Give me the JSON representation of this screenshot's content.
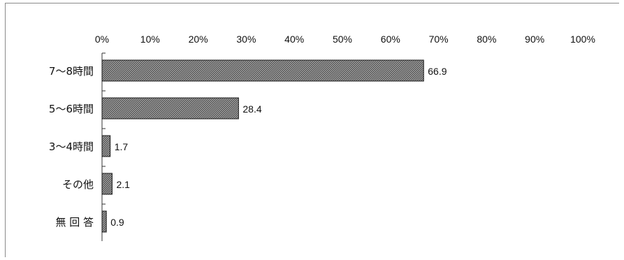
{
  "chart_data": {
    "type": "bar",
    "orientation": "horizontal",
    "categories": [
      "7～8時間",
      "5～6時間",
      "3～4時間",
      "その他",
      "無 回 答"
    ],
    "values": [
      66.9,
      28.4,
      1.7,
      2.1,
      0.9
    ],
    "data_labels": [
      "66.9",
      "28.4",
      "1.7",
      "2.1",
      "0.9"
    ],
    "xlim": [
      0,
      100
    ],
    "x_ticks": [
      0,
      10,
      20,
      30,
      40,
      50,
      60,
      70,
      80,
      90,
      100
    ],
    "x_tick_labels": [
      "0%",
      "10%",
      "20%",
      "30%",
      "40%",
      "50%",
      "60%",
      "70%",
      "80%",
      "90%",
      "100%"
    ],
    "x_axis_position": "top",
    "grid": false,
    "legend": "none",
    "bar_fill": "crosshatch",
    "title": "",
    "xlabel": "",
    "ylabel": ""
  },
  "colors": {
    "bar_fill": "#9a9a9a",
    "bar_hatch": "#3c3c3c",
    "bar_border": "#1a1a1a",
    "axis": "#333333",
    "text": "#111111"
  }
}
